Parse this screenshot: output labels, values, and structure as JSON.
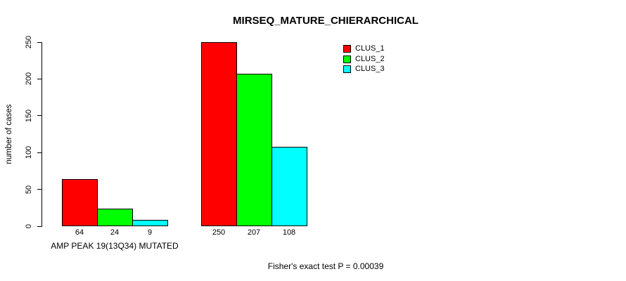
{
  "chart_data": {
    "type": "bar",
    "title": "MIRSEQ_MATURE_CHIERARCHICAL",
    "ylabel": "number of cases",
    "xlabel": "",
    "ylim": [
      0,
      250
    ],
    "yticks": [
      0,
      50,
      100,
      150,
      200,
      250
    ],
    "grid": false,
    "legend_position": "top-right",
    "series": [
      {
        "name": "CLUS_1",
        "color": "#FF0000",
        "values": [
          64,
          250
        ]
      },
      {
        "name": "CLUS_2",
        "color": "#00FF00",
        "values": [
          24,
          207
        ]
      },
      {
        "name": "CLUS_3",
        "color": "#00FFFF",
        "values": [
          9,
          108
        ]
      }
    ],
    "groups": [
      {
        "label": "AMP PEAK 19(13Q34) MUTATED"
      },
      {
        "label": ""
      }
    ],
    "annotation": "Fisher's exact test P = 0.00039"
  }
}
